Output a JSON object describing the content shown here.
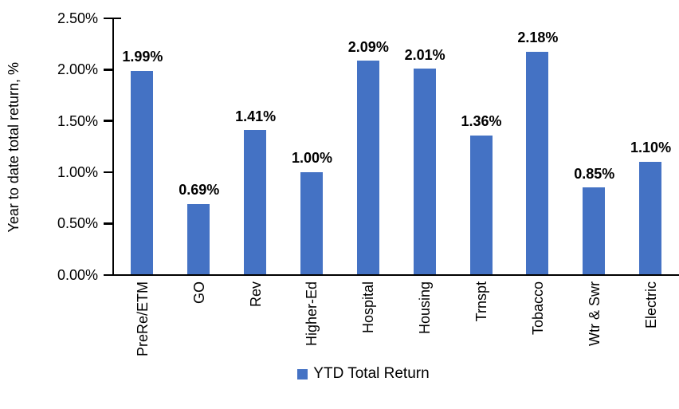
{
  "chart_data": {
    "type": "bar",
    "title": "",
    "xlabel": "",
    "ylabel": "Year to date total return, %",
    "categories": [
      "PreRe/ETM",
      "GO",
      "Rev",
      "Higher-Ed",
      "Hospital",
      "Housing",
      "Trnspt",
      "Tobacco",
      "Wtr & Swr",
      "Electric"
    ],
    "values": [
      1.99,
      0.69,
      1.41,
      1.0,
      2.09,
      2.01,
      1.36,
      2.18,
      0.85,
      1.1
    ],
    "value_labels": [
      "1.99%",
      "0.69%",
      "1.41%",
      "1.00%",
      "2.09%",
      "2.01%",
      "1.36%",
      "2.18%",
      "0.85%",
      "1.10%"
    ],
    "ylim": [
      0,
      2.5
    ],
    "ytick_labels": [
      "0.00%",
      "0.50%",
      "1.00%",
      "1.50%",
      "2.00%",
      "2.50%"
    ],
    "grid": false,
    "bar_color": "#4472C4",
    "axis_color": "#000000",
    "legend": {
      "position": "bottom",
      "entries": [
        {
          "label": "YTD Total Return",
          "color": "#4472C4"
        }
      ]
    }
  }
}
